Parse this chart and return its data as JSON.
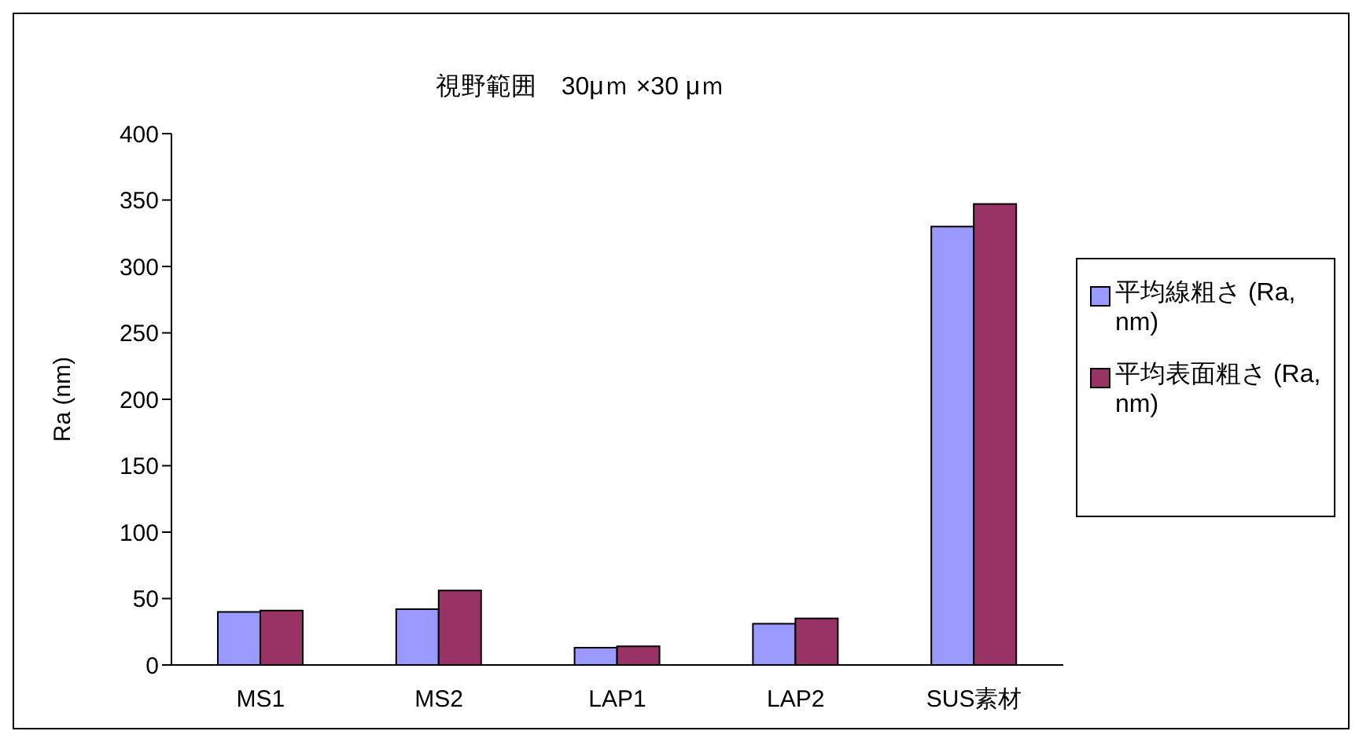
{
  "chart_data": {
    "type": "bar",
    "title": "視野範囲　30μｍ ×30 μｍ",
    "ylabel": "Ra (nm)",
    "categories": [
      "MS1",
      "MS2",
      "LAP1",
      "LAP2",
      "SUS素材"
    ],
    "series": [
      {
        "name": "平均線粗さ (Ra, nm)",
        "color": "#9999ff",
        "values": [
          40,
          42,
          13,
          31,
          330
        ]
      },
      {
        "name": "平均表面粗さ (Ra, nm)",
        "color": "#993366",
        "values": [
          41,
          56,
          14,
          35,
          347
        ]
      }
    ],
    "ylim": [
      0,
      400
    ],
    "yticks": [
      0,
      50,
      100,
      150,
      200,
      250,
      300,
      350,
      400
    ],
    "grid": false,
    "legend": "right"
  }
}
